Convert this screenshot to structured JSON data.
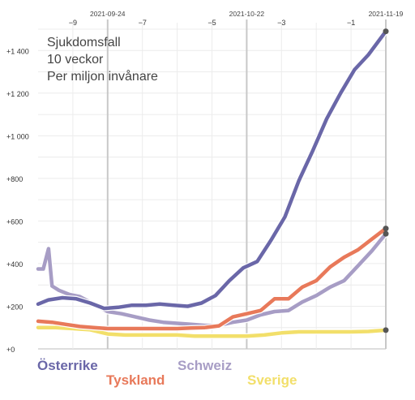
{
  "chart_data": {
    "type": "line",
    "title_lines": [
      "Sjukdomsfall",
      "10 veckor",
      "Per miljon invånare"
    ],
    "xlim": [
      -10,
      0
    ],
    "ylim": [
      0,
      1500
    ],
    "x_ticks": [
      -9,
      -7,
      -5,
      -3,
      -1
    ],
    "x_tick_labels": [
      "−9",
      "−7",
      "−5",
      "−3",
      "−1"
    ],
    "y_ticks": [
      0,
      200,
      400,
      600,
      800,
      1000,
      1200,
      1400
    ],
    "y_tick_labels": [
      "+0",
      "+200",
      "+400",
      "+600",
      "+800",
      "+1 000",
      "+1 200",
      "+1 400"
    ],
    "date_markers": [
      {
        "x": -8,
        "label": "2021-09-24"
      },
      {
        "x": -4,
        "label": "2021-10-22"
      },
      {
        "x": 0,
        "label": "2021-11-19"
      }
    ],
    "series": [
      {
        "name": "Österrike",
        "color": "#6a67a8",
        "x": [
          -10,
          -9.7,
          -9.3,
          -8.9,
          -8.5,
          -8.1,
          -7.7,
          -7.3,
          -6.9,
          -6.5,
          -6.1,
          -5.7,
          -5.3,
          -4.9,
          -4.5,
          -4.1,
          -3.7,
          -3.3,
          -2.9,
          -2.5,
          -2.1,
          -1.7,
          -1.3,
          -0.9,
          -0.5,
          0
        ],
        "values": [
          210,
          230,
          240,
          235,
          215,
          190,
          195,
          205,
          205,
          210,
          205,
          200,
          215,
          250,
          320,
          380,
          410,
          510,
          620,
          790,
          930,
          1080,
          1200,
          1310,
          1380,
          1490
        ]
      },
      {
        "name": "Tyskland",
        "color": "#e8795a",
        "x": [
          -10,
          -9.6,
          -9.2,
          -8.8,
          -8.4,
          -8,
          -7.6,
          -7.2,
          -6.8,
          -6.4,
          -6,
          -5.6,
          -5.2,
          -4.8,
          -4.4,
          -4,
          -3.6,
          -3.2,
          -2.8,
          -2.4,
          -2,
          -1.6,
          -1.2,
          -0.8,
          -0.4,
          0
        ],
        "values": [
          130,
          125,
          115,
          105,
          100,
          95,
          95,
          95,
          95,
          95,
          95,
          98,
          100,
          108,
          150,
          165,
          180,
          235,
          235,
          290,
          320,
          385,
          430,
          465,
          515,
          565
        ]
      },
      {
        "name": "Schweiz",
        "color": "#a79dc5",
        "x": [
          -10,
          -9.85,
          -9.7,
          -9.6,
          -9.4,
          -9.1,
          -8.8,
          -8.4,
          -8,
          -7.6,
          -7.2,
          -6.8,
          -6.4,
          -6,
          -5.6,
          -5.2,
          -4.8,
          -4.4,
          -4,
          -3.6,
          -3.2,
          -2.8,
          -2.4,
          -2,
          -1.6,
          -1.2,
          -0.8,
          -0.4,
          0
        ],
        "values": [
          375,
          375,
          470,
          295,
          275,
          255,
          245,
          210,
          175,
          165,
          150,
          135,
          125,
          120,
          115,
          110,
          110,
          125,
          135,
          160,
          175,
          180,
          220,
          250,
          290,
          320,
          390,
          460,
          540
        ]
      },
      {
        "name": "Sverige",
        "color": "#f2df6a",
        "x": [
          -10,
          -9.5,
          -9,
          -8.5,
          -8,
          -7.5,
          -7,
          -6.5,
          -6,
          -5.5,
          -5,
          -4.5,
          -4,
          -3.5,
          -3,
          -2.5,
          -2,
          -1.5,
          -1,
          -0.5,
          0
        ],
        "values": [
          100,
          100,
          95,
          90,
          70,
          65,
          65,
          65,
          65,
          60,
          60,
          60,
          60,
          65,
          75,
          80,
          80,
          80,
          80,
          82,
          88
        ]
      }
    ],
    "legend_position": "bottom",
    "grid": true
  }
}
